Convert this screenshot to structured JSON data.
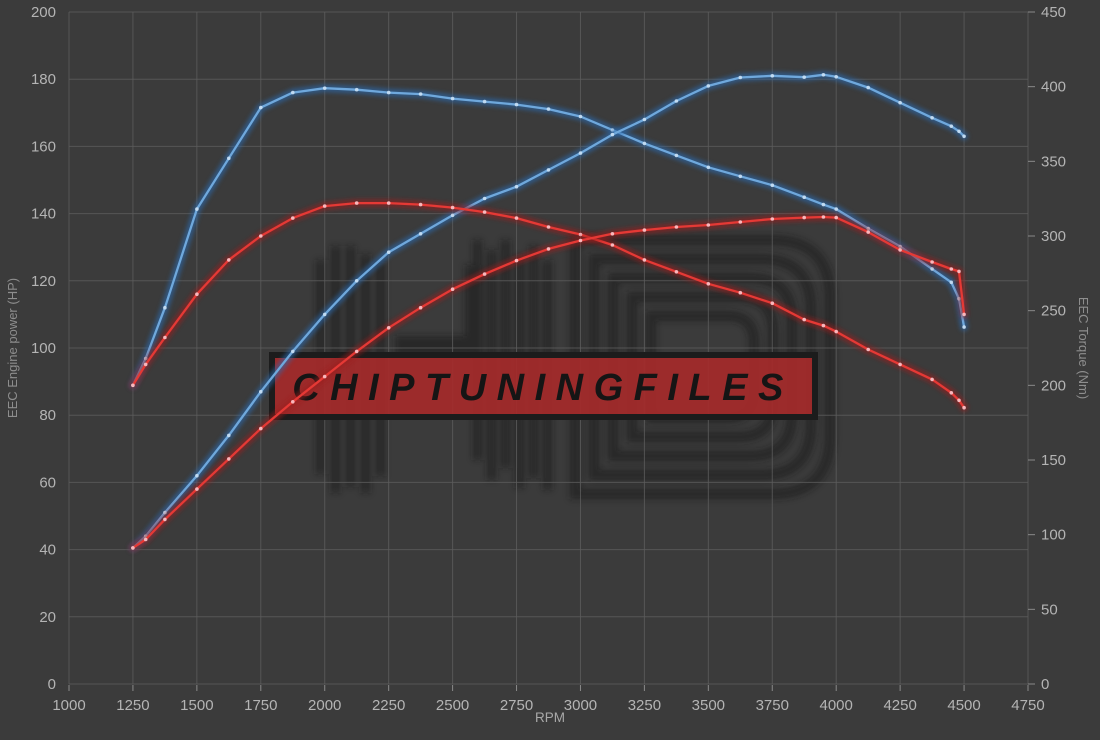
{
  "watermark": {
    "text": "CHIPTUNINGFILES",
    "box_fill": "#a52a2a",
    "box_border": "#1c1c1c",
    "text_color": "#151515"
  },
  "axes": {
    "x": {
      "label": "RPM",
      "min": 1000,
      "max": 4750,
      "ticks": [
        1000,
        1250,
        1500,
        1750,
        2000,
        2250,
        2500,
        2750,
        3000,
        3250,
        3500,
        3750,
        4000,
        4250,
        4500,
        4750
      ]
    },
    "y_left": {
      "label": "EEC Engine power (HP)",
      "min": 0,
      "max": 200,
      "ticks": [
        0,
        20,
        40,
        60,
        80,
        100,
        120,
        140,
        160,
        180,
        200
      ]
    },
    "y_right": {
      "label": "EEC Torque (Nm)",
      "min": 0,
      "max": 450,
      "ticks": [
        0,
        50,
        100,
        150,
        200,
        250,
        300,
        350,
        400,
        450
      ]
    }
  },
  "style": {
    "background": "#3b3b3b",
    "grid_color": "#5d5d5d",
    "tick_label_color": "#b4b4b4",
    "axis_title_color": "#8e8e8e",
    "rpm_label_color": "#a8a8a8",
    "logo_color": "#161616"
  },
  "chart_data": {
    "type": "line",
    "xlabel": "RPM",
    "ylabel_left": "EEC Engine power (HP)",
    "ylabel_right": "EEC Torque (Nm)",
    "x_range": [
      1000,
      4750
    ],
    "y_left_range": [
      0,
      200
    ],
    "y_right_range": [
      0,
      450
    ],
    "grid": true,
    "legend": false,
    "x": [
      1250,
      1300,
      1375,
      1500,
      1625,
      1750,
      1875,
      2000,
      2125,
      2250,
      2375,
      2500,
      2625,
      2750,
      2875,
      3000,
      3125,
      3250,
      3375,
      3500,
      3625,
      3750,
      3875,
      3950,
      4000,
      4125,
      4250,
      4375,
      4450,
      4480,
      4500
    ],
    "series": [
      {
        "name": "tuned-torque-nm",
        "axis": "right",
        "color": "#6fa8dc",
        "glow": "#2a6bb0",
        "marker": "#cfe4f7",
        "values": [
          200,
          218,
          252,
          318,
          352,
          386,
          396,
          399,
          398,
          396,
          395,
          392,
          390,
          388,
          385,
          380,
          371,
          362,
          354,
          346,
          340,
          334,
          326,
          321,
          318,
          305,
          293,
          278,
          269,
          258,
          239
        ]
      },
      {
        "name": "tuned-power-hp",
        "axis": "left",
        "color": "#6fa8dc",
        "glow": "#2a6bb0",
        "marker": "#cfe4f7",
        "values": [
          40.5,
          44,
          51,
          62,
          74,
          87,
          99,
          110,
          120,
          128.5,
          134,
          139.5,
          144.5,
          148,
          153,
          158,
          163.5,
          168,
          173.5,
          178,
          180.5,
          181,
          180.6,
          181.3,
          180.7,
          177.5,
          173,
          168.5,
          166,
          164.5,
          163
        ]
      },
      {
        "name": "stock-torque-nm",
        "axis": "right",
        "color": "#e53935",
        "glow": "#9c1c1c",
        "marker": "#ffcdd2",
        "values": [
          200,
          214,
          232,
          261,
          284,
          300,
          312,
          320,
          322,
          322,
          321,
          319,
          316,
          312,
          306,
          301,
          294,
          284,
          276,
          268,
          262,
          255,
          244,
          240,
          236,
          224,
          214,
          204,
          195,
          190,
          185
        ]
      },
      {
        "name": "stock-power-hp",
        "axis": "left",
        "color": "#e53935",
        "glow": "#9c1c1c",
        "marker": "#ffcdd2",
        "values": [
          40.5,
          43,
          49,
          58,
          67,
          76,
          84,
          91.5,
          99,
          106,
          112,
          117.5,
          122,
          126,
          129.5,
          132,
          134,
          135.1,
          136,
          136.6,
          137.5,
          138.4,
          138.8,
          139,
          138.8,
          134.5,
          129.2,
          125.6,
          123.5,
          122.8,
          110
        ]
      }
    ]
  }
}
